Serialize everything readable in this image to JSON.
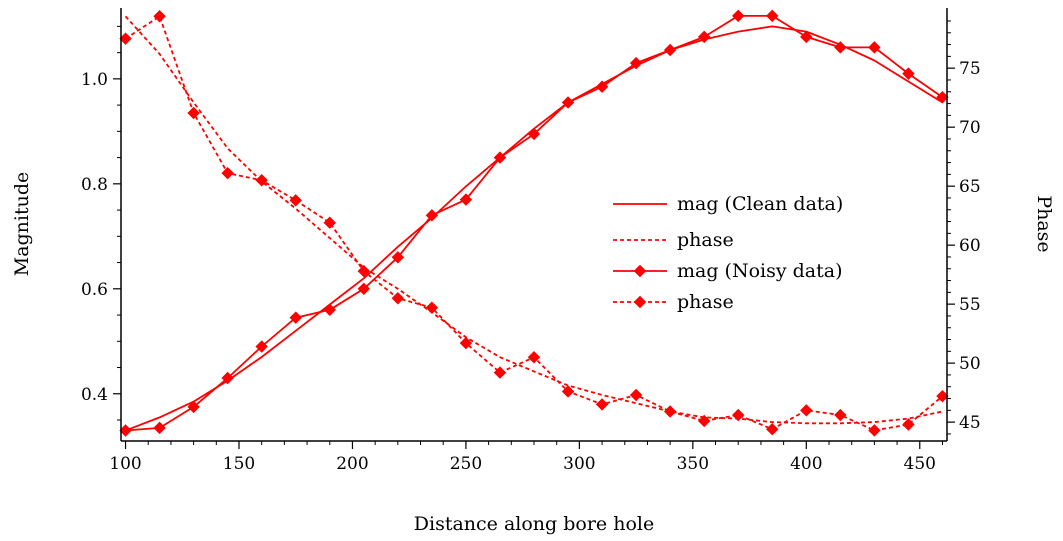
{
  "chart_data": {
    "type": "line",
    "xlabel": "Distance along bore hole",
    "ylabel_left": "Magnitude",
    "ylabel_right": "Phase",
    "xlim": [
      98,
      462
    ],
    "ylim_left": [
      0.31,
      1.135
    ],
    "ylim_right": [
      43.4,
      80.1
    ],
    "xticks": [
      100,
      150,
      200,
      250,
      300,
      350,
      400,
      450
    ],
    "yticks_left": [
      0.4,
      0.6,
      0.8,
      1.0
    ],
    "yticks_left_labels": [
      "0.4",
      "0.6",
      "0.8",
      "1.0"
    ],
    "yticks_right": [
      45,
      50,
      55,
      60,
      65,
      70,
      75
    ],
    "grid": false,
    "legend": {
      "position": "center-right"
    },
    "series": [
      {
        "name": "mag (Clean data)",
        "axis": "left",
        "style": "solid",
        "markers": false,
        "x": [
          100,
          115,
          130,
          145,
          160,
          175,
          190,
          205,
          220,
          235,
          250,
          265,
          280,
          295,
          310,
          325,
          340,
          355,
          370,
          385,
          400,
          415,
          430,
          445,
          460
        ],
        "y": [
          0.33,
          0.355,
          0.385,
          0.425,
          0.47,
          0.52,
          0.57,
          0.62,
          0.68,
          0.735,
          0.795,
          0.85,
          0.905,
          0.955,
          0.99,
          1.025,
          1.055,
          1.075,
          1.09,
          1.1,
          1.09,
          1.065,
          1.035,
          0.995,
          0.955
        ]
      },
      {
        "name": "phase",
        "axis": "right",
        "style": "dashed",
        "markers": false,
        "x": [
          100,
          115,
          130,
          145,
          160,
          175,
          190,
          205,
          220,
          235,
          250,
          265,
          280,
          295,
          310,
          325,
          340,
          355,
          370,
          385,
          400,
          415,
          430,
          445,
          460
        ],
        "y": [
          79.4,
          76.2,
          72.1,
          68.2,
          65.4,
          63.1,
          60.6,
          58.1,
          56.3,
          54.3,
          52.2,
          50.5,
          49.3,
          48.1,
          47.3,
          46.6,
          45.9,
          45.4,
          45.3,
          45.0,
          44.9,
          44.9,
          45.0,
          45.3,
          45.9
        ]
      },
      {
        "name": "mag (Noisy data)",
        "axis": "left",
        "style": "solid",
        "markers": true,
        "x": [
          100,
          115,
          130,
          145,
          160,
          175,
          190,
          205,
          220,
          235,
          250,
          265,
          280,
          295,
          310,
          325,
          340,
          355,
          370,
          385,
          400,
          415,
          430,
          445,
          460
        ],
        "y": [
          0.33,
          0.335,
          0.375,
          0.43,
          0.49,
          0.545,
          0.56,
          0.6,
          0.66,
          0.74,
          0.77,
          0.85,
          0.895,
          0.955,
          0.985,
          1.03,
          1.055,
          1.08,
          1.12,
          1.12,
          1.08,
          1.06,
          1.06,
          1.01,
          0.965
        ]
      },
      {
        "name": "phase",
        "axis": "right",
        "style": "dashed",
        "markers": true,
        "x": [
          100,
          115,
          130,
          145,
          160,
          175,
          190,
          205,
          220,
          235,
          250,
          265,
          280,
          295,
          310,
          325,
          340,
          355,
          370,
          385,
          400,
          415,
          430,
          445,
          460
        ],
        "y": [
          77.5,
          79.4,
          71.2,
          66.1,
          65.5,
          63.8,
          61.9,
          57.8,
          55.5,
          54.7,
          51.7,
          49.2,
          50.5,
          47.6,
          46.5,
          47.3,
          45.9,
          45.1,
          45.6,
          44.4,
          46.0,
          45.6,
          44.3,
          44.8,
          47.2
        ]
      }
    ]
  },
  "colors": {
    "series": "#ff0000",
    "axis": "#000000",
    "background": "#ffffff"
  }
}
